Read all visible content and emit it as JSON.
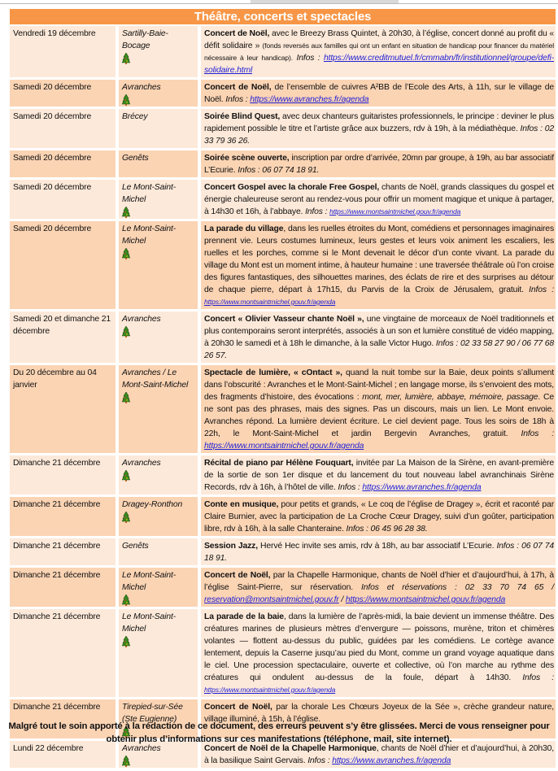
{
  "title": "Théâtre, concerts et spectacles",
  "colors": {
    "header": "#f79646",
    "row_light": "#fde9d9",
    "row_dark": "#fbd4b4",
    "link": "#1f1fd6"
  },
  "rows": [
    {
      "date": "Vendredi 19 décembre",
      "city": "Sartilly-Baie-Bocage",
      "icon": "christmas-tree-icon",
      "desc": [
        {
          "t": "Concert de Noël,",
          "s": "b"
        },
        {
          "t": " avec le Breezy Brass Quintet, à 20h30, à l’église, concert donné au profit du « défit solidaire » "
        },
        {
          "t": "(fonds reversés aux familles qui ont un enfant en situation de handicap pour financer du matériel nécessaire à leur handicap).",
          "s": "sm"
        },
        {
          "t": " Infos : ",
          "s": "i"
        },
        {
          "t": "https://www.creditmutuel.fr/cmmabn/fr/institutionnel/groupe/defi-solidaire.html",
          "s": "link"
        }
      ]
    },
    {
      "date": "Samedi 20 décembre",
      "city": "Avranches",
      "icon": "christmas-tree-icon",
      "desc": [
        {
          "t": "Concert de Noël,",
          "s": "b"
        },
        {
          "t": " de l’ensemble de cuivres A²BB de l’Ecole des Arts, à 11h, sur le village de Noël. "
        },
        {
          "t": "Infos : ",
          "s": "i"
        },
        {
          "t": "https://www.avranches.fr/agenda",
          "s": "link"
        }
      ]
    },
    {
      "date": "Samedi 20 décembre",
      "city": "Brécey",
      "icon": "",
      "desc": [
        {
          "t": "Soirée Blind Quest,",
          "s": "b"
        },
        {
          "t": " avec deux chanteurs guitaristes professionnels, le principe : deviner le plus rapidement possible le titre et l’artiste grâce aux buzzers, rdv à 19h, à la médiathèque. "
        },
        {
          "t": "Infos : 02 33 79 36 26.",
          "s": "i"
        }
      ]
    },
    {
      "date": "Samedi 20 décembre",
      "city": "Genêts",
      "icon": "",
      "desc": [
        {
          "t": "Soirée scène ouverte,",
          "s": "b"
        },
        {
          "t": " inscription par ordre d’arrivée, 20mn par groupe, à 19h, au bar associatif L’Ecurie. "
        },
        {
          "t": "Infos : 06 07 74 18 91.",
          "s": "i"
        }
      ]
    },
    {
      "date": "Samedi 20 décembre",
      "city": "Le Mont-Saint-Michel",
      "icon": "christmas-tree-icon",
      "desc": [
        {
          "t": "Concert Gospel avec la chorale Free Gospel,",
          "s": "b"
        },
        {
          "t": " chants de Noël, grands classiques du gospel et énergie chaleureuse seront au rendez-vous pour offrir un moment magique et unique à partager, à 14h30 et 16h, à l’abbaye. "
        },
        {
          "t": "Infos : ",
          "s": "i"
        },
        {
          "t": "https://www.montsaintmichel.gouv.fr/agenda",
          "s": "link sm"
        }
      ]
    },
    {
      "date": "Samedi 20 décembre",
      "city": "Le Mont-Saint-Michel",
      "icon": "christmas-tree-icon",
      "desc": [
        {
          "t": "La parade du village",
          "s": "b"
        },
        {
          "t": ", dans les ruelles étroites du Mont, comédiens et personnages imaginaires prennent vie. Leurs costumes lumineux, leurs gestes et leurs voix animent les escaliers, les ruelles et les porches, comme si le Mont devenait le décor d’un conte vivant. La parade du village du Mont est un moment intime, à hauteur humaine : une traversée théâtrale où l’on croise des figures fantastiques, des silhouettes marines, des éclats de rire et des surprises au détour de chaque pierre, départ à 17h15, du Parvis de la Croix de Jérusalem, gratuit. "
        },
        {
          "t": "Infos : ",
          "s": "i"
        },
        {
          "t": "https://www.montsaintmichel.gouv.fr/agenda",
          "s": "link sm"
        }
      ]
    },
    {
      "date": "Samedi 20 et dimanche 21 décembre",
      "city": "Avranches",
      "icon": "christmas-tree-icon",
      "desc": [
        {
          "t": "Concert « Olivier Vasseur chante Noël »,",
          "s": "b"
        },
        {
          "t": " une vingtaine de morceaux de Noël traditionnels et plus contemporains seront interprétés, associés à un son et lumière constitué de vidéo mapping, à 20h30 le samedi et à 18h le dimanche, à la salle Victor Hugo. "
        },
        {
          "t": "Infos : 02 33 58 27 90 / 06 77 68 26 57.",
          "s": "i"
        }
      ]
    },
    {
      "date": "Du 20 décembre au 04 janvier",
      "city": "Avranches / Le Mont-Saint-Michel",
      "icon": "christmas-tree-icon",
      "desc": [
        {
          "t": "Spectacle de lumière, « cOntact »,",
          "s": "b"
        },
        {
          "t": " quand la nuit tombe sur la Baie, deux points s’allument dans l’obscurité : Avranches et le Mont-Saint-Michel ; en langage morse, ils s’envoient des mots, des fragments d’histoire, des évocations : "
        },
        {
          "t": "mont, mer, lumière, abbaye, mémoire, passage",
          "s": "i"
        },
        {
          "t": ". Ce ne sont pas des phrases, mais des signes. Pas un discours, mais un lien. Le Mont envoie. Avranches répond. La lumière devient écriture. Le ciel devient page. Tous les soirs de 18h à 22h, le Mont-Saint-Michel et jardin Bergevin Avranches, gratuit. "
        },
        {
          "t": "Infos : ",
          "s": "i"
        },
        {
          "t": "https://www.montsaintmichel.gouv.fr/agenda",
          "s": "link"
        }
      ]
    },
    {
      "date": "Dimanche 21 décembre",
      "city": "Avranches",
      "icon": "christmas-tree-icon",
      "desc": [
        {
          "t": "Récital de piano par Hélène Fouquart,",
          "s": "b"
        },
        {
          "t": " invitée par La Maison de la Sirène, en avant-première de la sortie de son 1er disque et du lancement du tout nouveau label avranchinais Sirène Records, rdv à 16h, à l’hôtel de ville. "
        },
        {
          "t": "Infos : ",
          "s": "i"
        },
        {
          "t": "https://www.avranches.fr/agenda",
          "s": "link"
        }
      ]
    },
    {
      "date": "Dimanche 21 décembre",
      "city": "Dragey-Ronthon",
      "icon": "christmas-tree-icon",
      "desc": [
        {
          "t": "Conte en musique,",
          "s": "b"
        },
        {
          "t": " pour petits et grands, « Le coq de l’église de Dragey », écrit et raconté par Claire Burnier, avec la participation de La Croche Cœur Dragey, suivi d’un goûter, participation libre, rdv à 16h, à la salle Chanteraine. "
        },
        {
          "t": "Infos : 06 45 96 28 38.",
          "s": "i"
        }
      ]
    },
    {
      "date": "Dimanche 21 décembre",
      "city": "Genêts",
      "icon": "",
      "desc": [
        {
          "t": "Session Jazz,",
          "s": "b"
        },
        {
          "t": " Hervé Hec invite ses amis, rdv à 18h, au bar associatif L’Ecurie. "
        },
        {
          "t": "Infos : 06 07 74 18 91.",
          "s": "i"
        }
      ]
    },
    {
      "date": "Dimanche 21 décembre",
      "city": "Le Mont-Saint-Michel",
      "icon": "christmas-tree-icon",
      "desc": [
        {
          "t": "Concert de Noël,",
          "s": "b"
        },
        {
          "t": " par la Chapelle Harmonique, chants de Noël d’hier et d’aujourd’hui, à 17h, à l’église Saint-Pierre, sur réservation. "
        },
        {
          "t": "Infos et réservations : 02 33 70 74 65 / ",
          "s": "i"
        },
        {
          "t": "reservation@montsaintmichel.gouv.fr",
          "s": "link"
        },
        {
          "t": " / ",
          "s": "i"
        },
        {
          "t": "https://www.montsaintmichel.gouv.fr/agenda",
          "s": "link"
        }
      ]
    },
    {
      "date": "Dimanche 21 décembre",
      "city": "Le Mont-Saint-Michel",
      "icon": "christmas-tree-icon",
      "desc": [
        {
          "t": "La parade de la baie",
          "s": "b"
        },
        {
          "t": ", dans la lumière de l’après-midi, la baie devient un immense théâtre. Des créatures marines de plusieurs mètres d’envergure — poissons, murène, triton et chimères volantes — flottent au-dessus du public, guidées par les comédiens. Le cortège avance lentement, depuis la Caserne jusqu’au pied du Mont, comme un grand voyage aquatique dans le ciel. Une procession spectaculaire, ouverte et collective, où l’on marche au rythme des créatures qui ondulent au-dessus de la foule, départ à 14h30. "
        },
        {
          "t": "Infos : ",
          "s": "i"
        },
        {
          "t": "https://www.montsaintmichel.gouv.fr/agenda",
          "s": "link sm"
        }
      ]
    },
    {
      "date": "Dimanche 21 décembre",
      "city": "Tirepied-sur-Sée (Ste Eugienne)",
      "icon": "christmas-tree-icon",
      "desc": [
        {
          "t": "Concert de Noël,",
          "s": "b"
        },
        {
          "t": " par la chorale Les Chœurs Joyeux de la Sée », crèche grandeur nature, village illuminé, à 15h, à l’église."
        }
      ]
    },
    {
      "date": "Lundi 22 décembre",
      "city": "Avranches",
      "icon": "christmas-tree-icon",
      "desc": [
        {
          "t": "Concert de Noël de la Chapelle Harmonique",
          "s": "b"
        },
        {
          "t": ", chants de Noël d’hier et d’aujourd’hui, à 20h30, à la basilique Saint Gervais. "
        },
        {
          "t": "Infos : ",
          "s": "i"
        },
        {
          "t": "https://www.avranches.fr/agenda",
          "s": "link"
        }
      ]
    }
  ],
  "footer": "Malgré tout le soin apporté à la rédaction de ce document, des erreurs peuvent s’y être glissées. Merci de vous renseigner pour obtenir plus d’informations sur ces manifestations (téléphone, mail, site internet)."
}
